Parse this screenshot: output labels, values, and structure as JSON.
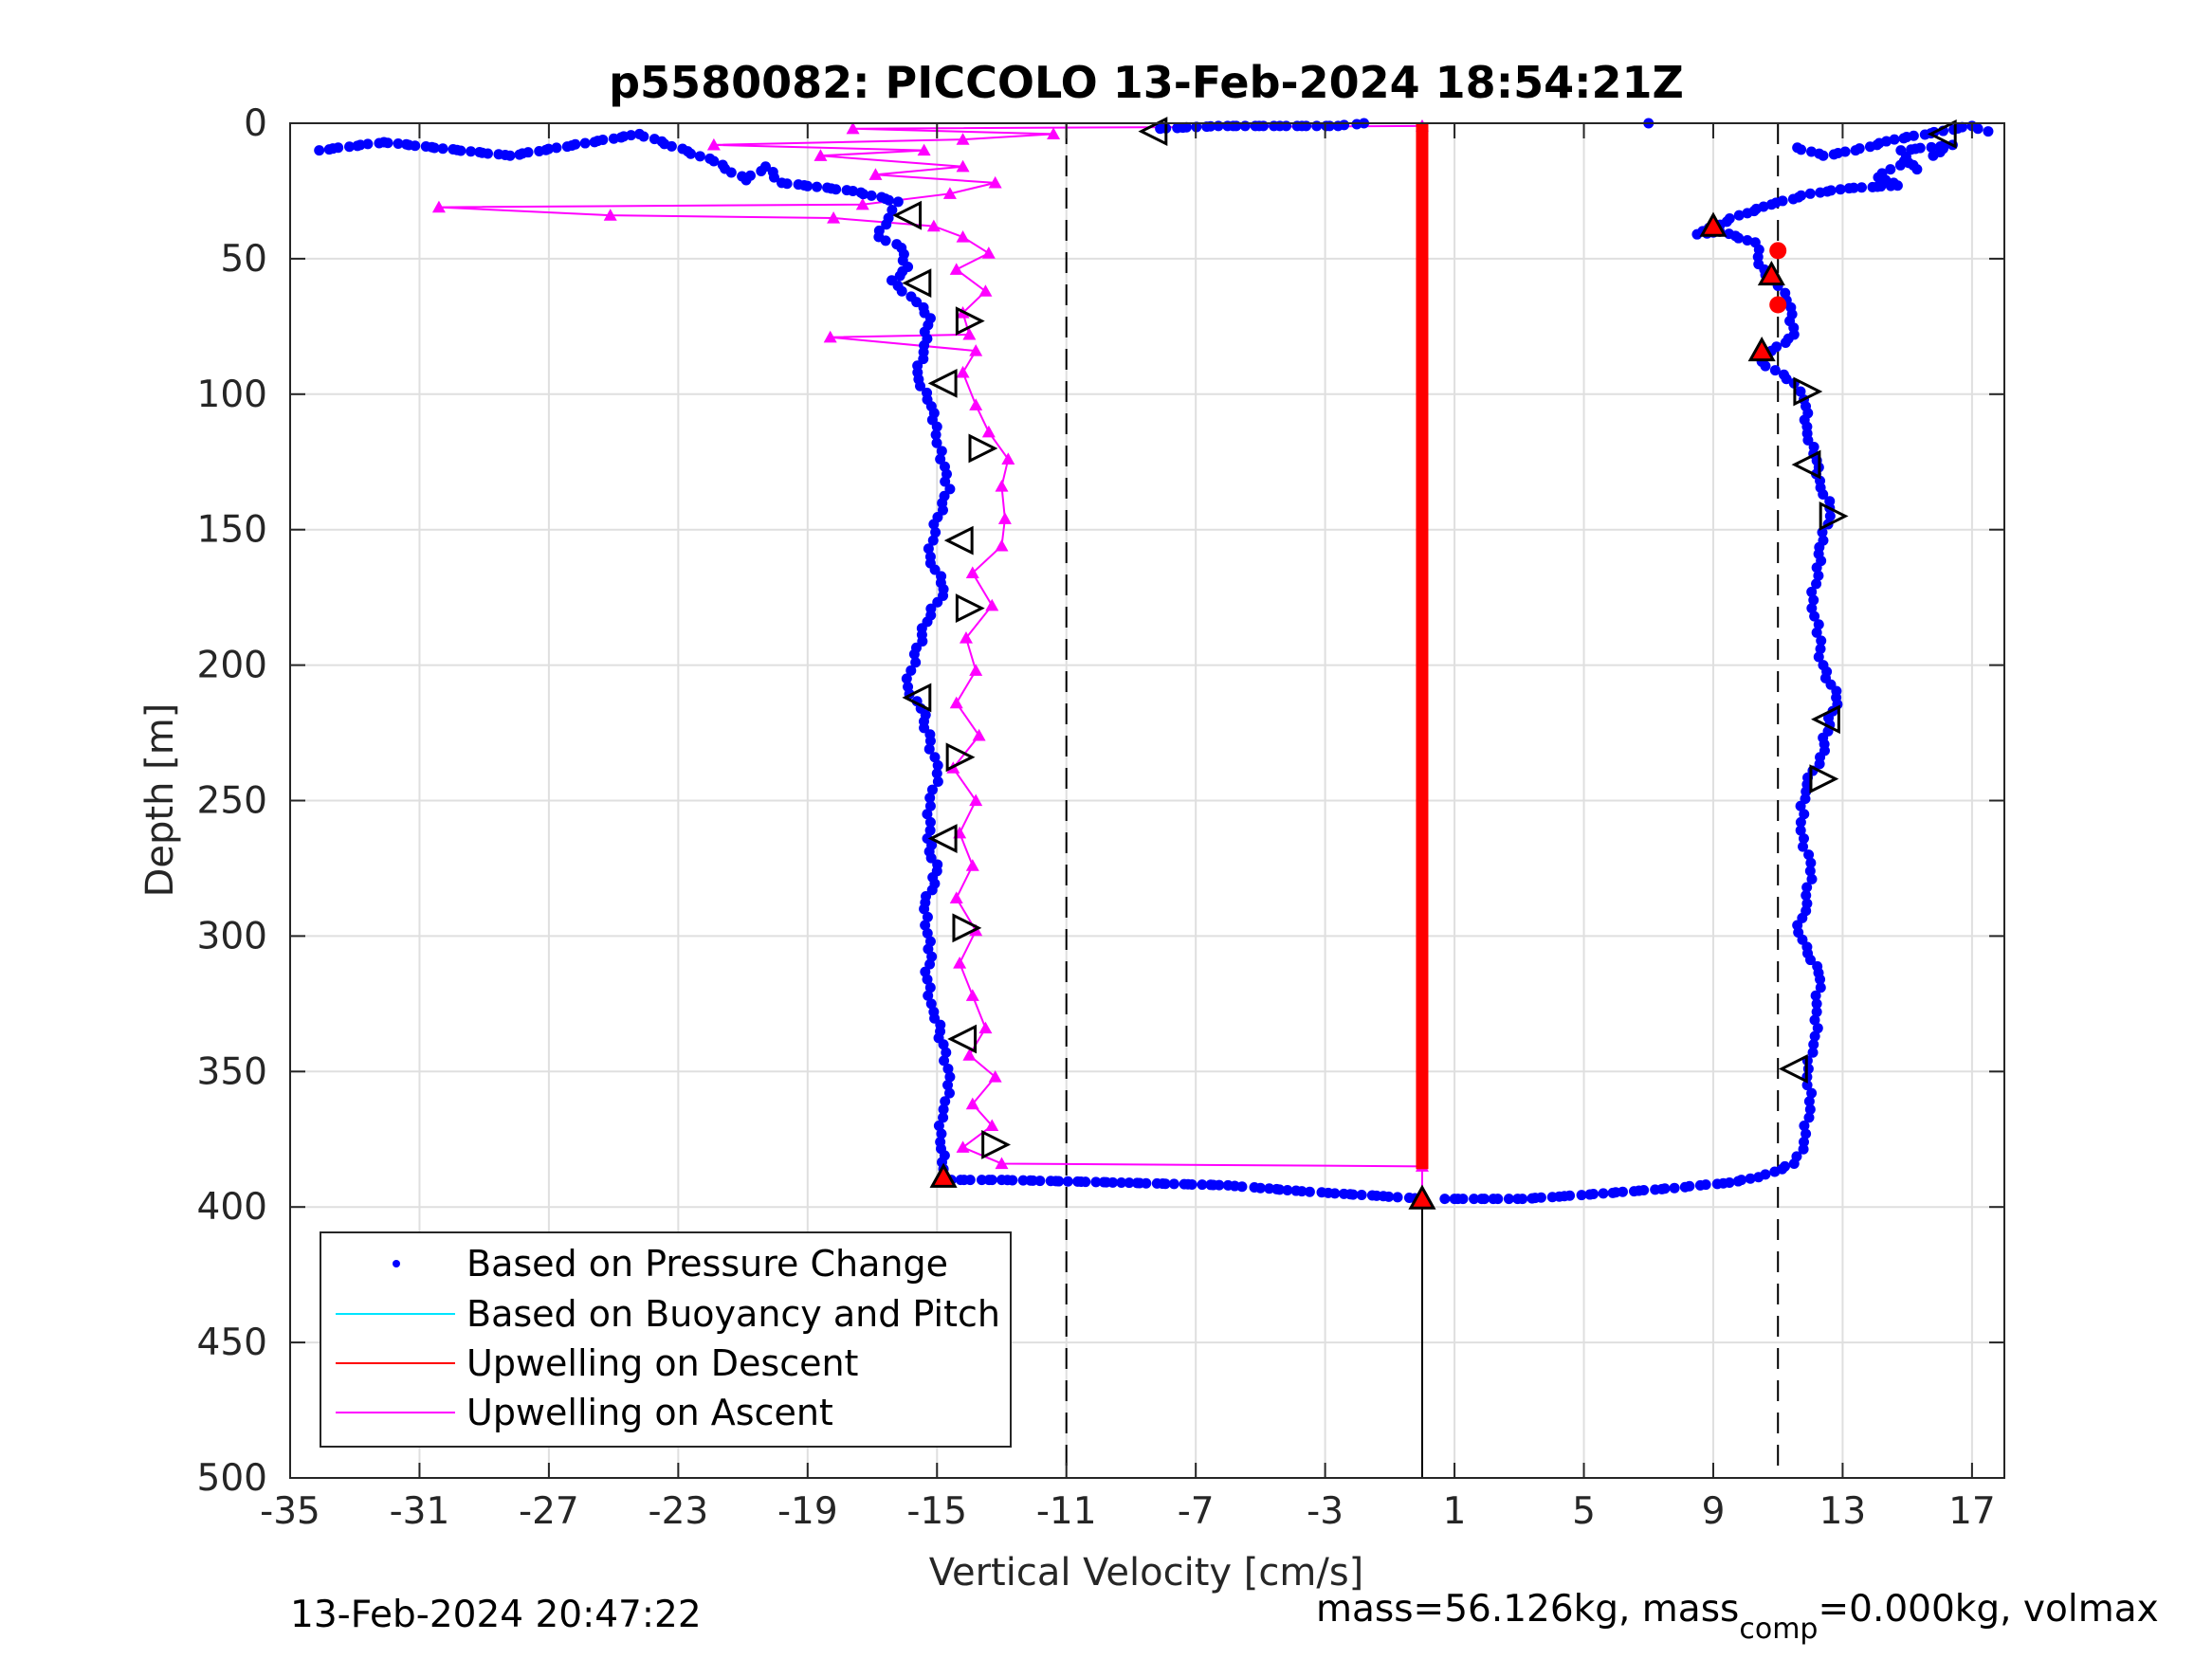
{
  "chart_data": {
    "type": "scatter",
    "title": "p5580082: PICCOLO 13-Feb-2024 18:54:21Z",
    "xlabel": "Vertical Velocity [cm/s]",
    "ylabel": "Depth [m]",
    "xlim": [
      -35,
      18
    ],
    "ylim": [
      0,
      500
    ],
    "y_reversed": true,
    "xticks": [
      "-35",
      "-31",
      "-27",
      "-23",
      "-19",
      "-15",
      "-11",
      "-7",
      "-3",
      "1",
      "5",
      "9",
      "13",
      "17"
    ],
    "yticks": [
      "0",
      "50",
      "100",
      "150",
      "200",
      "250",
      "300",
      "350",
      "400",
      "450",
      "500"
    ],
    "grid": true,
    "legend_position": "bottom-left",
    "legend": [
      {
        "label": "Based on Pressure Change",
        "color": "#0000ff",
        "style": "dot"
      },
      {
        "label": "Based on Buoyancy and Pitch",
        "color": "#00e5ff",
        "style": "line"
      },
      {
        "label": "Upwelling on Descent",
        "color": "#ff0000",
        "style": "line"
      },
      {
        "label": "Upwelling on Ascent",
        "color": "#ff00ff",
        "style": "line"
      }
    ],
    "vertical_reference_lines": [
      {
        "x": -11,
        "style": "dashed"
      },
      {
        "x": 11,
        "style": "dashed"
      },
      {
        "x": 0,
        "style": "solid",
        "from_depth": 397,
        "to_depth": 500
      }
    ],
    "series": [
      {
        "name": "Based on Pressure Change",
        "color": "#0000ff",
        "marker": "dot",
        "segments": [
          {
            "id": "descent",
            "points": [
              [
                -34.1,
                10
              ],
              [
                -32.1,
                7
              ],
              [
                -28.2,
                12
              ],
              [
                -24.2,
                4
              ],
              [
                -21.9,
                14
              ],
              [
                -20.9,
                21
              ],
              [
                -20.3,
                16
              ],
              [
                -19.8,
                22
              ],
              [
                -17.6,
                25
              ],
              [
                -16.2,
                29
              ],
              [
                -16.5,
                35
              ],
              [
                -16.8,
                42
              ],
              [
                -16.1,
                46
              ],
              [
                -15.9,
                53
              ],
              [
                -16.4,
                58
              ],
              [
                -15.8,
                64
              ],
              [
                -15.2,
                72
              ],
              [
                -15.4,
                82
              ],
              [
                -15.6,
                92
              ],
              [
                -15.3,
                102
              ],
              [
                -15.0,
                112
              ],
              [
                -14.9,
                124
              ],
              [
                -14.6,
                135
              ],
              [
                -15.1,
                148
              ],
              [
                -15.2,
                160
              ],
              [
                -14.8,
                172
              ],
              [
                -15.3,
                184
              ],
              [
                -15.7,
                196
              ],
              [
                -15.9,
                208
              ],
              [
                -15.5,
                216
              ],
              [
                -15.2,
                228
              ],
              [
                -15.0,
                240
              ],
              [
                -15.2,
                252
              ],
              [
                -15.3,
                264
              ],
              [
                -15.0,
                276
              ],
              [
                -15.4,
                290
              ],
              [
                -15.2,
                302
              ],
              [
                -15.3,
                316
              ],
              [
                -15.1,
                328
              ],
              [
                -14.8,
                340
              ],
              [
                -14.6,
                352
              ],
              [
                -14.8,
                364
              ],
              [
                -14.9,
                376
              ],
              [
                -14.8,
                386
              ],
              [
                -14.8,
                390
              ],
              [
                -13.0,
                390
              ],
              [
                -9.3,
                391
              ],
              [
                -6.0,
                392
              ],
              [
                -5.0,
                393
              ],
              [
                -3.9,
                394
              ],
              [
                -2.7,
                395
              ],
              [
                -1.2,
                396
              ],
              [
                0.0,
                397
              ]
            ]
          },
          {
            "id": "ascent",
            "points": [
              [
                0.7,
                397
              ],
              [
                2.2,
                397
              ],
              [
                3.1,
                397
              ],
              [
                4.4,
                396
              ],
              [
                5.6,
                395
              ],
              [
                6.7,
                394
              ],
              [
                7.8,
                393
              ],
              [
                8.6,
                392
              ],
              [
                9.5,
                391
              ],
              [
                10.4,
                389
              ],
              [
                10.9,
                387
              ],
              [
                11.5,
                384
              ],
              [
                11.8,
                376
              ],
              [
                12.0,
                364
              ],
              [
                11.9,
                352
              ],
              [
                12.1,
                340
              ],
              [
                12.2,
                328
              ],
              [
                12.3,
                316
              ],
              [
                11.9,
                304
              ],
              [
                11.6,
                296
              ],
              [
                11.9,
                288
              ],
              [
                12.0,
                276
              ],
              [
                11.8,
                264
              ],
              [
                11.7,
                252
              ],
              [
                11.9,
                244
              ],
              [
                12.3,
                234
              ],
              [
                12.6,
                222
              ],
              [
                12.8,
                212
              ],
              [
                12.4,
                200
              ],
              [
                12.2,
                188
              ],
              [
                12.1,
                176
              ],
              [
                12.2,
                164
              ],
              [
                12.4,
                154
              ],
              [
                12.6,
                142
              ],
              [
                12.3,
                132
              ],
              [
                12.1,
                122
              ],
              [
                11.9,
                112
              ],
              [
                11.8,
                102
              ],
              [
                11.5,
                96
              ],
              [
                10.5,
                88
              ],
              [
                10.8,
                84
              ],
              [
                11.5,
                78
              ],
              [
                11.4,
                68
              ],
              [
                11.0,
                60
              ],
              [
                10.4,
                52
              ],
              [
                10.3,
                44
              ],
              [
                9.2,
                40
              ],
              [
                8.5,
                41
              ],
              [
                9.8,
                34
              ],
              [
                10.8,
                30
              ],
              [
                12.0,
                26
              ],
              [
                13.2,
                24
              ],
              [
                14.7,
                23
              ],
              [
                14.1,
                20
              ],
              [
                14.9,
                14
              ],
              [
                15.3,
                17
              ],
              [
                14.8,
                10
              ],
              [
                16.4,
                8
              ],
              [
                15.8,
                12
              ],
              [
                11.6,
                9
              ],
              [
                12.4,
                12
              ],
              [
                13.4,
                10
              ],
              [
                14.6,
                6
              ],
              [
                17.0,
                1
              ],
              [
                17.5,
                3
              ],
              [
                7.0,
                0
              ],
              [
                -1.8,
                0
              ],
              [
                -2.6,
                1
              ],
              [
                -4.4,
                1
              ],
              [
                -6.3,
                1
              ],
              [
                -8.1,
                2
              ]
            ]
          }
        ]
      },
      {
        "name": "Upwelling on Ascent",
        "color": "#ff00ff",
        "marker": "triangle",
        "points": [
          [
            0.0,
            396
          ],
          [
            0.0,
            385
          ],
          [
            -13.0,
            384
          ],
          [
            -14.2,
            378
          ],
          [
            -13.3,
            370
          ],
          [
            -13.9,
            362
          ],
          [
            -13.2,
            352
          ],
          [
            -14.0,
            344
          ],
          [
            -13.5,
            334
          ],
          [
            -13.9,
            322
          ],
          [
            -14.3,
            310
          ],
          [
            -13.8,
            298
          ],
          [
            -14.4,
            286
          ],
          [
            -13.9,
            274
          ],
          [
            -14.3,
            262
          ],
          [
            -13.8,
            250
          ],
          [
            -14.5,
            238
          ],
          [
            -13.7,
            226
          ],
          [
            -14.4,
            214
          ],
          [
            -13.8,
            202
          ],
          [
            -14.1,
            190
          ],
          [
            -13.3,
            178
          ],
          [
            -13.9,
            166
          ],
          [
            -13.0,
            156
          ],
          [
            -12.9,
            146
          ],
          [
            -13.0,
            134
          ],
          [
            -12.8,
            124
          ],
          [
            -13.4,
            114
          ],
          [
            -13.8,
            104
          ],
          [
            -14.2,
            92
          ],
          [
            -13.8,
            84
          ],
          [
            -18.3,
            79
          ],
          [
            -14.0,
            78
          ],
          [
            -14.2,
            70
          ],
          [
            -13.5,
            62
          ],
          [
            -14.4,
            54
          ],
          [
            -13.4,
            48
          ],
          [
            -14.2,
            42
          ],
          [
            -15.1,
            38
          ],
          [
            -18.2,
            35
          ],
          [
            -25.1,
            34
          ],
          [
            -30.4,
            31
          ],
          [
            -17.3,
            30
          ],
          [
            -14.6,
            26
          ],
          [
            -13.2,
            22
          ],
          [
            -16.9,
            19
          ],
          [
            -14.2,
            16
          ],
          [
            -18.6,
            12
          ],
          [
            -15.4,
            10
          ],
          [
            -21.9,
            8
          ],
          [
            -14.2,
            6
          ],
          [
            -11.4,
            4
          ],
          [
            -17.6,
            2
          ],
          [
            0.0,
            1
          ]
        ]
      },
      {
        "name": "Upwelling on Descent",
        "color": "#ff0000",
        "marker": "triangle",
        "points": [
          [
            0.0,
            0
          ],
          [
            0.0,
            386
          ]
        ]
      }
    ],
    "marker_points": {
      "red_triangles": [
        [
          -14.8,
          389
        ],
        [
          0.0,
          397
        ],
        [
          9.0,
          38
        ],
        [
          10.8,
          56
        ],
        [
          10.5,
          84
        ]
      ],
      "red_dots": [
        [
          11.0,
          47
        ],
        [
          11.0,
          67
        ]
      ],
      "open_triangles_left": [
        [
          -8.3,
          3
        ],
        [
          16.1,
          4
        ],
        [
          -15.9,
          34
        ],
        [
          -15.6,
          59
        ],
        [
          -14.8,
          96
        ],
        [
          -14.3,
          154
        ],
        [
          -15.6,
          212
        ],
        [
          -14.8,
          264
        ],
        [
          -14.2,
          338
        ],
        [
          11.9,
          126
        ],
        [
          11.5,
          349
        ],
        [
          12.5,
          220
        ]
      ],
      "open_triangles_right": [
        [
          -14.0,
          73
        ],
        [
          -13.6,
          120
        ],
        [
          -14.0,
          179
        ],
        [
          -14.3,
          234
        ],
        [
          -14.1,
          297
        ],
        [
          -13.2,
          377
        ],
        [
          11.9,
          99
        ],
        [
          12.7,
          145
        ],
        [
          12.4,
          242
        ]
      ]
    }
  },
  "footer": {
    "timestamp": "13-Feb-2024 20:47:22",
    "mass_text": "mass=56.126kg, mass",
    "mass_subscript": "comp",
    "mass_suffix": "=0.000kg, volmax"
  }
}
